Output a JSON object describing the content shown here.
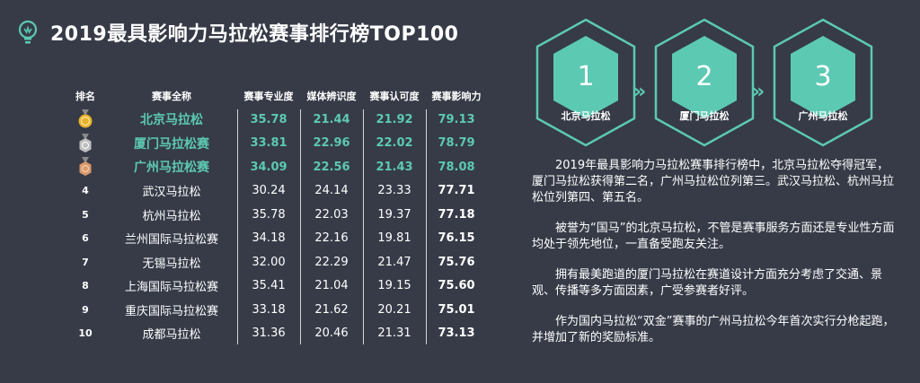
{
  "title": "2019最具影响力马拉松赛事排行榜TOP100",
  "colors": {
    "accent": "#5cc9b3",
    "background": "#363b47",
    "gold": "#e8b32a",
    "silver": "#bfbfbf",
    "bronze": "#d99a6c"
  },
  "table": {
    "headers": [
      "排名",
      "赛事全称",
      "赛事专业度",
      "媒体辨识度",
      "赛事认可度",
      "赛事影响力"
    ],
    "rows": [
      {
        "rank": "",
        "medal": "gold-medal-icon",
        "name": "北京马拉松",
        "v1": "35.78",
        "v2": "21.44",
        "v3": "21.92",
        "v4": "79.13"
      },
      {
        "rank": "",
        "medal": "silver-medal-icon",
        "name": "厦门马拉松赛",
        "v1": "33.81",
        "v2": "22.96",
        "v3": "22.02",
        "v4": "78.79"
      },
      {
        "rank": "",
        "medal": "bronze-medal-icon",
        "name": "广州马拉松赛",
        "v1": "34.09",
        "v2": "22.56",
        "v3": "21.43",
        "v4": "78.08"
      },
      {
        "rank": "4",
        "name": "武汉马拉松",
        "v1": "30.24",
        "v2": "24.14",
        "v3": "23.33",
        "v4": "77.71"
      },
      {
        "rank": "5",
        "name": "杭州马拉松",
        "v1": "35.78",
        "v2": "22.03",
        "v3": "19.37",
        "v4": "77.18"
      },
      {
        "rank": "6",
        "name": "兰州国际马拉松赛",
        "v1": "34.18",
        "v2": "22.16",
        "v3": "19.81",
        "v4": "76.15"
      },
      {
        "rank": "7",
        "name": "无锡马拉松",
        "v1": "32.00",
        "v2": "22.29",
        "v3": "21.47",
        "v4": "75.76"
      },
      {
        "rank": "8",
        "name": "上海国际马拉松赛",
        "v1": "35.41",
        "v2": "21.04",
        "v3": "19.15",
        "v4": "75.60"
      },
      {
        "rank": "9",
        "name": "重庆国际马拉松赛",
        "v1": "33.18",
        "v2": "21.62",
        "v3": "20.21",
        "v4": "75.01"
      },
      {
        "rank": "10",
        "name": "成都马拉松",
        "v1": "31.36",
        "v2": "20.46",
        "v3": "21.31",
        "v4": "73.13"
      }
    ]
  },
  "steps": [
    {
      "number": "1",
      "label": "北京马拉松"
    },
    {
      "number": "2",
      "label": "厦门马拉松"
    },
    {
      "number": "3",
      "label": "广州马拉松"
    }
  ],
  "chevron": "»",
  "paragraphs": [
    "2019年最具影响力马拉松赛事排行榜中，北京马拉松夺得冠军，厦门马拉松获得第二名，广州马拉松位列第三。武汉马拉松、杭州马拉松位列第四、第五名。",
    "被誉为“国马”的北京马拉松，不管是赛事服务方面还是专业性方面均处于领先地位，一直备受跑友关注。",
    "拥有最美跑道的厦门马拉松在赛道设计方面充分考虑了交通、景观、传播等多方面因素，广受参赛者好评。",
    "作为国内马拉松“双金”赛事的广州马拉松今年首次实行分枪起跑，并增加了新的奖励标准。"
  ]
}
